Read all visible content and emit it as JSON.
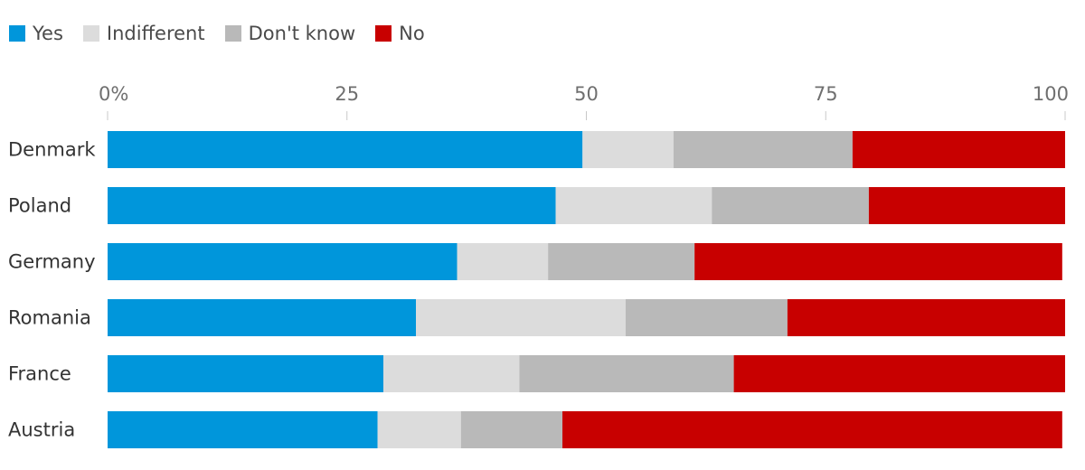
{
  "chart_data": {
    "type": "bar",
    "orientation": "horizontal",
    "stacked": true,
    "title": "",
    "xlabel": "",
    "ylabel": "",
    "xlim": [
      0,
      100
    ],
    "x_ticks": [
      "0%",
      "25",
      "50",
      "75",
      "100"
    ],
    "x_tick_values": [
      0,
      25,
      50,
      75,
      100
    ],
    "grid": false,
    "legend_position": "top-left",
    "categories": [
      "Denmark",
      "Poland",
      "Germany",
      "Romania",
      "France",
      "Austria"
    ],
    "series": [
      {
        "name": "Yes",
        "color": "#0096db",
        "values": [
          49.6,
          46.8,
          36.5,
          32.2,
          28.8,
          28.2
        ]
      },
      {
        "name": "Indifferent",
        "color": "#dcdcdc",
        "values": [
          9.5,
          16.3,
          9.5,
          21.9,
          14.2,
          8.7
        ]
      },
      {
        "name": "Don't know",
        "color": "#b9b9b9",
        "values": [
          18.7,
          16.4,
          15.3,
          16.9,
          22.4,
          10.6
        ]
      },
      {
        "name": "No",
        "color": "#c80000",
        "values": [
          22.2,
          20.5,
          38.4,
          29.0,
          34.6,
          52.2
        ]
      }
    ]
  }
}
